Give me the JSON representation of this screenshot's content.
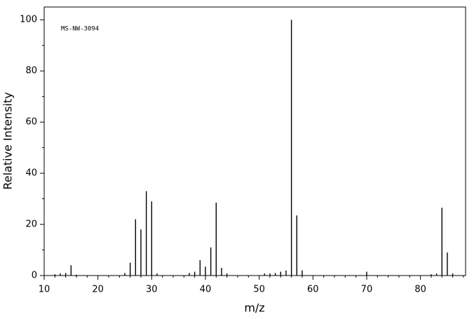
{
  "chart_data": {
    "type": "stem",
    "annotation": "MS-NW-3094",
    "x_label": "m/z",
    "y_label": "Relative Intensity",
    "color": "#000000",
    "x": [
      12,
      13,
      14,
      15,
      16,
      25,
      26,
      27,
      28,
      29,
      30,
      31,
      37,
      38,
      39,
      40,
      41,
      42,
      43,
      44,
      51,
      52,
      53,
      54,
      55,
      56,
      57,
      58,
      70,
      82,
      83,
      84,
      85,
      86
    ],
    "values": [
      0.5,
      0.8,
      1,
      4,
      0.3,
      1,
      5,
      22,
      18,
      33,
      29,
      0.8,
      1,
      1.5,
      6,
      3.5,
      11,
      28.5,
      3,
      0.8,
      0.8,
      0.8,
      1,
      1.5,
      2,
      100,
      23.5,
      2,
      1.5,
      0.5,
      0.8,
      26.5,
      9,
      0.8
    ],
    "xlim": [
      10,
      88.4
    ],
    "ylim": [
      0,
      105
    ],
    "xticks": [
      10,
      20,
      30,
      40,
      50,
      60,
      70,
      80
    ],
    "yticks": [
      0,
      20,
      40,
      60,
      80,
      100
    ],
    "xminorticks": [
      12,
      14,
      16,
      18,
      22,
      24,
      26,
      28,
      32,
      34,
      36,
      38,
      42,
      44,
      46,
      48,
      52,
      54,
      56,
      58,
      62,
      64,
      66,
      68,
      72,
      74,
      76,
      78,
      82,
      84,
      86,
      88
    ],
    "yminorticks": [
      10,
      30,
      50,
      70,
      90
    ]
  }
}
